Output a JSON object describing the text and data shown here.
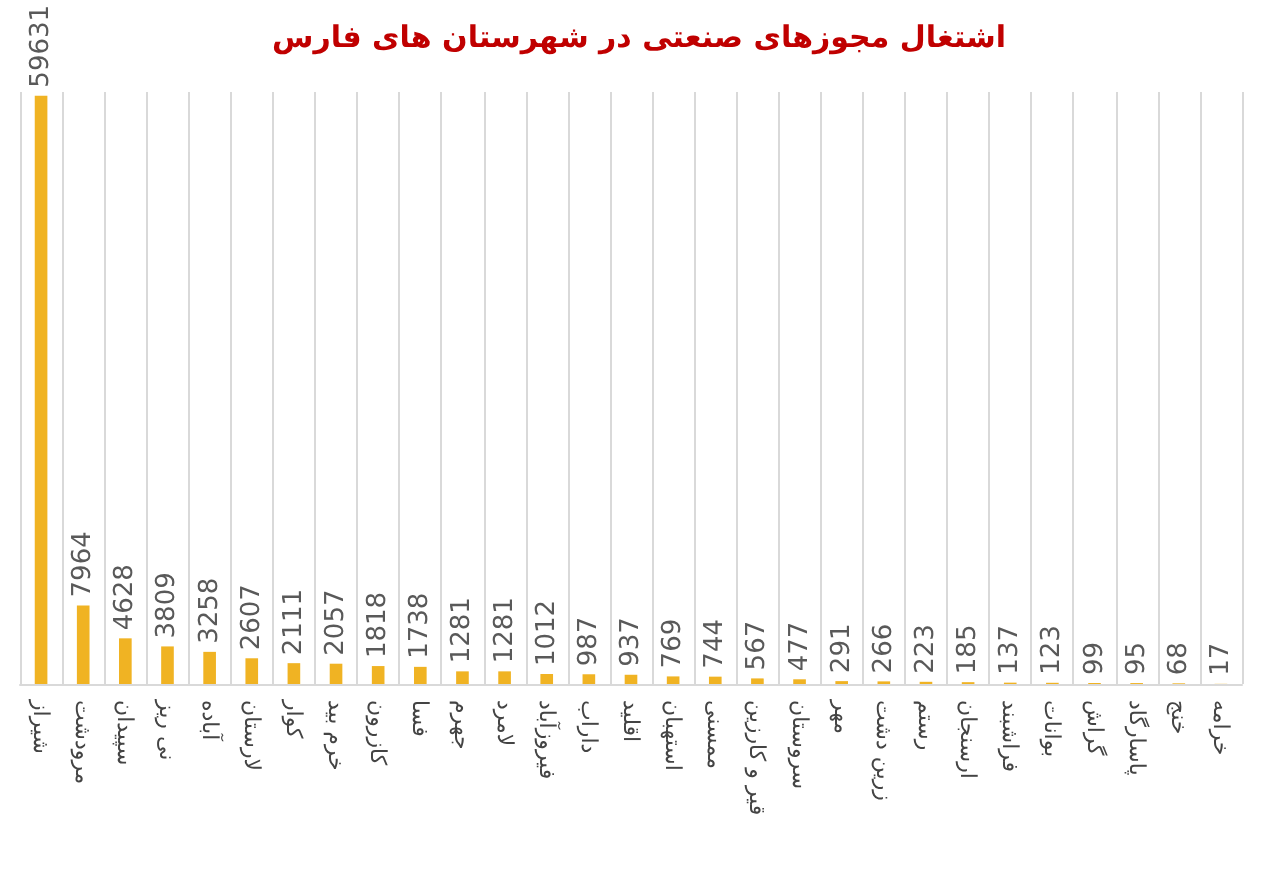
{
  "chart_data": {
    "type": "bar",
    "title": "اشتغال مجوزهای صنعتی در شهرستان های فارس",
    "categories": [
      "شیراز",
      "مرودشت",
      "سپیدان",
      "نی ریز",
      "آباده",
      "لارستان",
      "کوار",
      "خرم بید",
      "کازرون",
      "فسا",
      "جهرم",
      "لامرد",
      "فیروزآباد",
      "داراب",
      "اقلید",
      "استهبان",
      "ممسنی",
      "قیر و کارزین",
      "سروستان",
      "مهر",
      "زرین دشت",
      "رستم",
      "ارسنجان",
      "فراشبند",
      "بوانات",
      "گراش",
      "پاسارگاد",
      "خنج",
      "خرامه"
    ],
    "values": [
      59631,
      7964,
      4628,
      3809,
      3258,
      2607,
      2111,
      2057,
      1818,
      1738,
      1281,
      1281,
      1012,
      987,
      937,
      769,
      744,
      567,
      477,
      291,
      266,
      223,
      185,
      137,
      123,
      99,
      95,
      68,
      17
    ],
    "color": "#f0b323",
    "data_labels": true,
    "grid": "x"
  }
}
